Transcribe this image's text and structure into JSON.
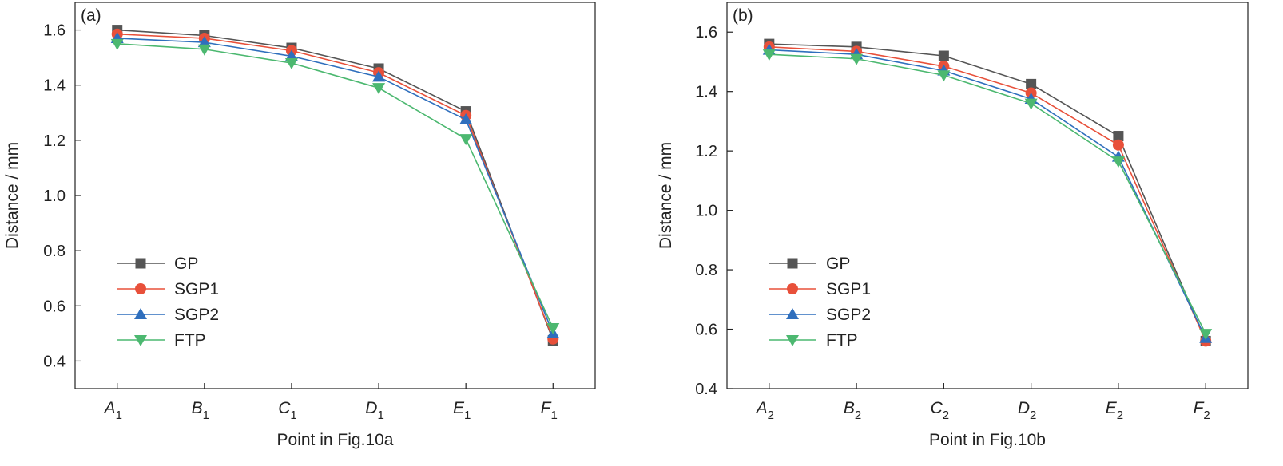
{
  "figure": {
    "colors": {
      "GP": "#555555",
      "SGP1": "#e8503a",
      "SGP2": "#2f6fbd",
      "FTP": "#4cb870"
    }
  },
  "chart_data": [
    {
      "type": "line",
      "panel_label": "(a)",
      "xlabel": "Point in Fig.10a",
      "ylabel": "Distance / mm",
      "categories": [
        {
          "base": "A",
          "sub": "1"
        },
        {
          "base": "B",
          "sub": "1"
        },
        {
          "base": "C",
          "sub": "1"
        },
        {
          "base": "D",
          "sub": "1"
        },
        {
          "base": "E",
          "sub": "1"
        },
        {
          "base": "F",
          "sub": "1"
        }
      ],
      "ylim": [
        0.3,
        1.7
      ],
      "yticks": [
        "0.4",
        "0.6",
        "0.8",
        "1.0",
        "1.2",
        "1.4",
        "1.6"
      ],
      "legend_position": "left-lower",
      "series": [
        {
          "name": "GP",
          "marker": "square",
          "values": [
            1.6,
            1.58,
            1.535,
            1.46,
            1.305,
            0.475
          ]
        },
        {
          "name": "SGP1",
          "marker": "circle",
          "values": [
            1.585,
            1.57,
            1.525,
            1.445,
            1.29,
            0.48
          ]
        },
        {
          "name": "SGP2",
          "marker": "triangle-up",
          "values": [
            1.57,
            1.555,
            1.505,
            1.43,
            1.275,
            0.5
          ]
        },
        {
          "name": "FTP",
          "marker": "triangle-down",
          "values": [
            1.55,
            1.53,
            1.48,
            1.39,
            1.205,
            0.52
          ]
        }
      ]
    },
    {
      "type": "line",
      "panel_label": "(b)",
      "xlabel": "Point in Fig.10b",
      "ylabel": "Distance / mm",
      "categories": [
        {
          "base": "A",
          "sub": "2"
        },
        {
          "base": "B",
          "sub": "2"
        },
        {
          "base": "C",
          "sub": "2"
        },
        {
          "base": "D",
          "sub": "2"
        },
        {
          "base": "E",
          "sub": "2"
        },
        {
          "base": "F",
          "sub": "2"
        }
      ],
      "ylim": [
        0.4,
        1.7
      ],
      "yticks": [
        "0.4",
        "0.6",
        "0.8",
        "1.0",
        "1.2",
        "1.4",
        "1.6"
      ],
      "legend_position": "left-lower",
      "series": [
        {
          "name": "GP",
          "marker": "square",
          "values": [
            1.56,
            1.55,
            1.52,
            1.425,
            1.25,
            0.56
          ]
        },
        {
          "name": "SGP1",
          "marker": "circle",
          "values": [
            1.55,
            1.535,
            1.485,
            1.395,
            1.22,
            0.56
          ]
        },
        {
          "name": "SGP2",
          "marker": "triangle-up",
          "values": [
            1.54,
            1.525,
            1.47,
            1.375,
            1.18,
            0.57
          ]
        },
        {
          "name": "FTP",
          "marker": "triangle-down",
          "values": [
            1.525,
            1.51,
            1.455,
            1.36,
            1.165,
            0.585
          ]
        }
      ]
    }
  ]
}
